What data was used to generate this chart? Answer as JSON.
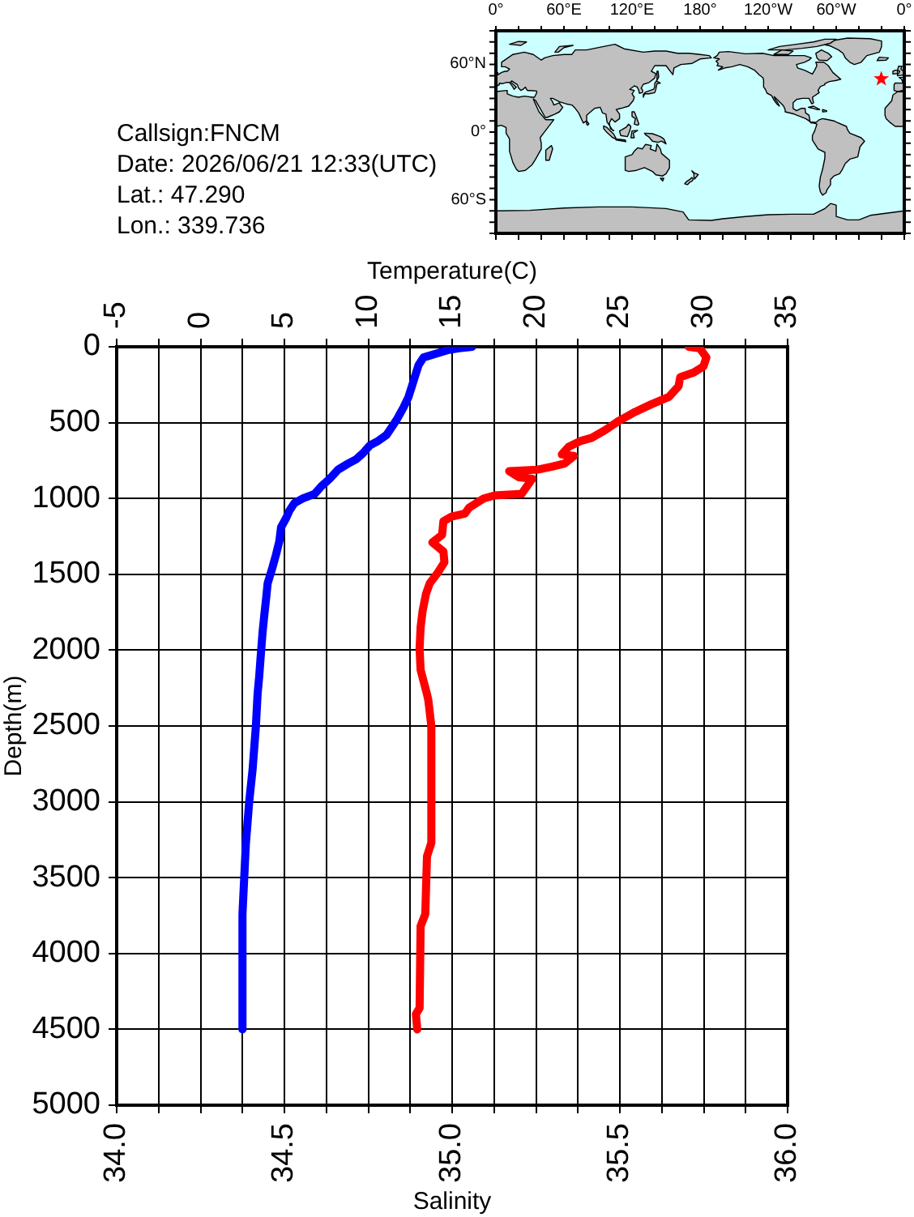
{
  "chart_data": {
    "type": "line",
    "xlabel": "Salinity",
    "x2label": "Temperature(C)",
    "ylabel": "Depth(m)",
    "annotations": [
      "Callsign:FNCM",
      "Date: 2026/06/21 12:33(UTC)",
      "Lat.: 47.290",
      "Lon.: 339.736",
      "0°",
      "60°E",
      "120°E",
      "180°",
      "120°W",
      "60°W",
      "0°",
      "60°N",
      "0°",
      "60°S"
    ],
    "xlim": [
      34,
      36
    ],
    "xticks": [
      {
        "value": 34,
        "label": "34.0"
      },
      {
        "value": 34.125,
        "label": null
      },
      {
        "value": 34.25,
        "label": null
      },
      {
        "value": 34.375,
        "label": null
      },
      {
        "value": 34.5,
        "label": "34.5"
      },
      {
        "value": 34.625,
        "label": null
      },
      {
        "value": 34.75,
        "label": null
      },
      {
        "value": 34.875,
        "label": null
      },
      {
        "value": 35,
        "label": "35.0"
      },
      {
        "value": 35.125,
        "label": null
      },
      {
        "value": 35.25,
        "label": null
      },
      {
        "value": 35.375,
        "label": null
      },
      {
        "value": 35.5,
        "label": "35.5"
      },
      {
        "value": 35.625,
        "label": null
      },
      {
        "value": 35.75,
        "label": null
      },
      {
        "value": 35.875,
        "label": null
      },
      {
        "value": 36,
        "label": "36.0"
      }
    ],
    "x2lim": [
      -5,
      35
    ],
    "x2ticks": [
      -5,
      {
        "value": -2.5,
        "label": null
      },
      0,
      {
        "value": 2.5,
        "label": null
      },
      5,
      {
        "value": 7.5,
        "label": null
      },
      10,
      {
        "value": 12.5,
        "label": null
      },
      15,
      {
        "value": 17.5,
        "label": null
      },
      20,
      {
        "value": 22.5,
        "label": null
      },
      25,
      {
        "value": 27.5,
        "label": null
      },
      30,
      {
        "value": 32.5,
        "label": null
      },
      35
    ],
    "ylim": [
      5000,
      0
    ],
    "yticks": [
      0,
      500,
      1000,
      1500,
      2000,
      2500,
      3000,
      3500,
      4000,
      4500,
      5000
    ],
    "grid": true,
    "series": [
      {
        "color": "#0000ff",
        "axis": "x2",
        "x": [
          16.2,
          15.4,
          14.8,
          14.2,
          13.3,
          13.0,
          12.8,
          12.6,
          12.4,
          12.1,
          11.7,
          11.4,
          11.1,
          10.6,
          10.1,
          9.7,
          9.3,
          8.8,
          8.2,
          7.7,
          7.2,
          6.8,
          6.1,
          5.6,
          5.3,
          5.1,
          4.8,
          4.7,
          4.5,
          4.3,
          4.0,
          3.9,
          3.8,
          3.7,
          3.6,
          3.5,
          3.4,
          3.3,
          3.1,
          2.9,
          2.7,
          2.6,
          2.5,
          2.5
        ],
        "values": [
          0,
          10,
          20,
          40,
          70,
          120,
          190,
          260,
          330,
          400,
          480,
          530,
          580,
          620,
          650,
          700,
          740,
          770,
          810,
          870,
          920,
          970,
          1000,
          1030,
          1080,
          1130,
          1190,
          1280,
          1370,
          1450,
          1560,
          1670,
          1770,
          1880,
          2020,
          2170,
          2290,
          2500,
          2790,
          3000,
          3280,
          3510,
          3740,
          4500
        ]
      },
      {
        "color": "#ff0000",
        "x": [
          35.705,
          35.738,
          35.758,
          35.749,
          35.72,
          35.68,
          35.675,
          35.646,
          35.593,
          35.545,
          35.496,
          35.456,
          35.416,
          35.384,
          35.347,
          35.327,
          35.363,
          35.335,
          35.298,
          35.255,
          35.17,
          35.199,
          35.239,
          35.223,
          35.207,
          35.126,
          35.094,
          35.051,
          35.038,
          34.998,
          34.974,
          34.97,
          34.941,
          34.974,
          34.977,
          34.957,
          34.933,
          34.922,
          34.912,
          34.906,
          34.903,
          34.906,
          34.925,
          34.929,
          34.938,
          34.938,
          34.925,
          34.92,
          34.906,
          34.903,
          34.892,
          34.896
        ],
        "values": [
          0,
          10,
          70,
          130,
          170,
          200,
          260,
          330,
          380,
          430,
          490,
          550,
          600,
          620,
          660,
          710,
          720,
          770,
          790,
          810,
          820,
          860,
          870,
          920,
          970,
          980,
          1000,
          1060,
          1100,
          1120,
          1150,
          1240,
          1290,
          1350,
          1420,
          1490,
          1560,
          1630,
          1740,
          1850,
          1990,
          2130,
          2290,
          2330,
          2500,
          3270,
          3360,
          3740,
          3820,
          4360,
          4400,
          4500
        ]
      }
    ]
  }
}
